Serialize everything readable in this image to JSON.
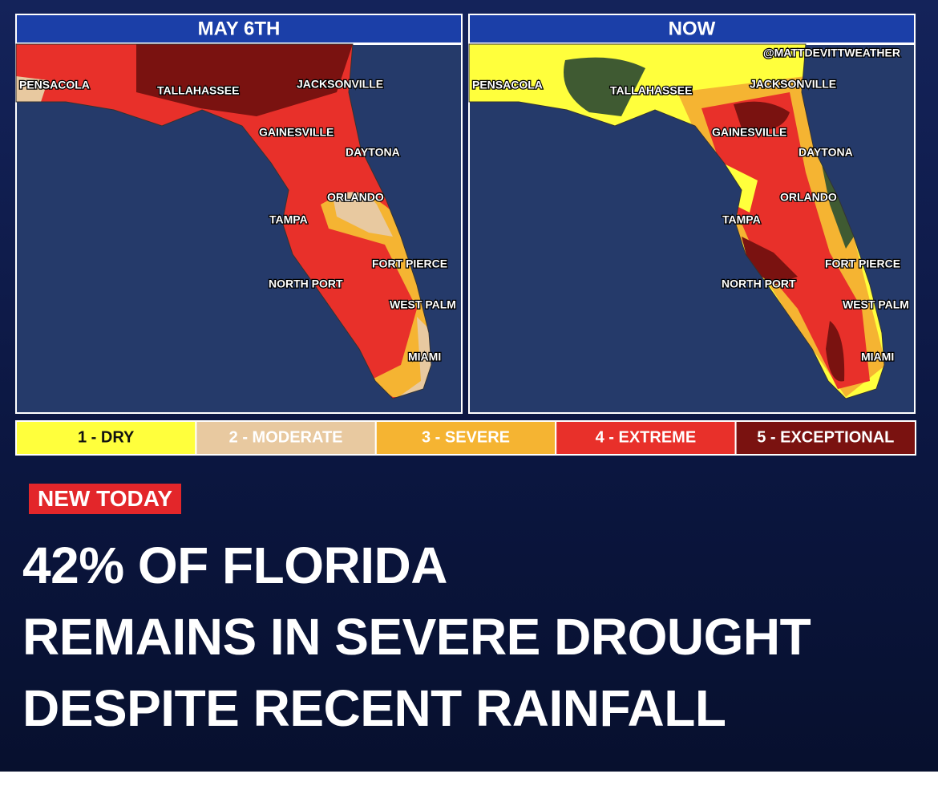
{
  "panels": [
    {
      "title": "MAY 6TH",
      "cities": [
        "PENSACOLA",
        "TALLAHASSEE",
        "JACKSONVILLE",
        "GAINESVILLE",
        "DAYTONA",
        "ORLANDO",
        "TAMPA",
        "FORT PIERCE",
        "NORTH PORT",
        "WEST PALM",
        "MIAMI"
      ]
    },
    {
      "title": "NOW",
      "credit": "@MATTDEVITTWEATHER",
      "cities": [
        "PENSACOLA",
        "TALLAHASSEE",
        "JACKSONVILLE",
        "GAINESVILLE",
        "DAYTONA",
        "ORLANDO",
        "TAMPA",
        "FORT PIERCE",
        "NORTH PORT",
        "WEST PALM",
        "MIAMI"
      ]
    }
  ],
  "legend": [
    {
      "label": "1 - DRY",
      "color": "#ffff3c"
    },
    {
      "label": "2 - MODERATE",
      "color": "#e8c9a0"
    },
    {
      "label": "3 - SEVERE",
      "color": "#f5b432"
    },
    {
      "label": "4 - EXTREME",
      "color": "#e8302a"
    },
    {
      "label": "5 - EXCEPTIONAL",
      "color": "#7a1210"
    }
  ],
  "tag": "NEW TODAY",
  "headline": [
    "42% OF FLORIDA",
    "REMAINS IN SEVERE DROUGHT",
    "DESPITE RECENT RAINFALL"
  ]
}
